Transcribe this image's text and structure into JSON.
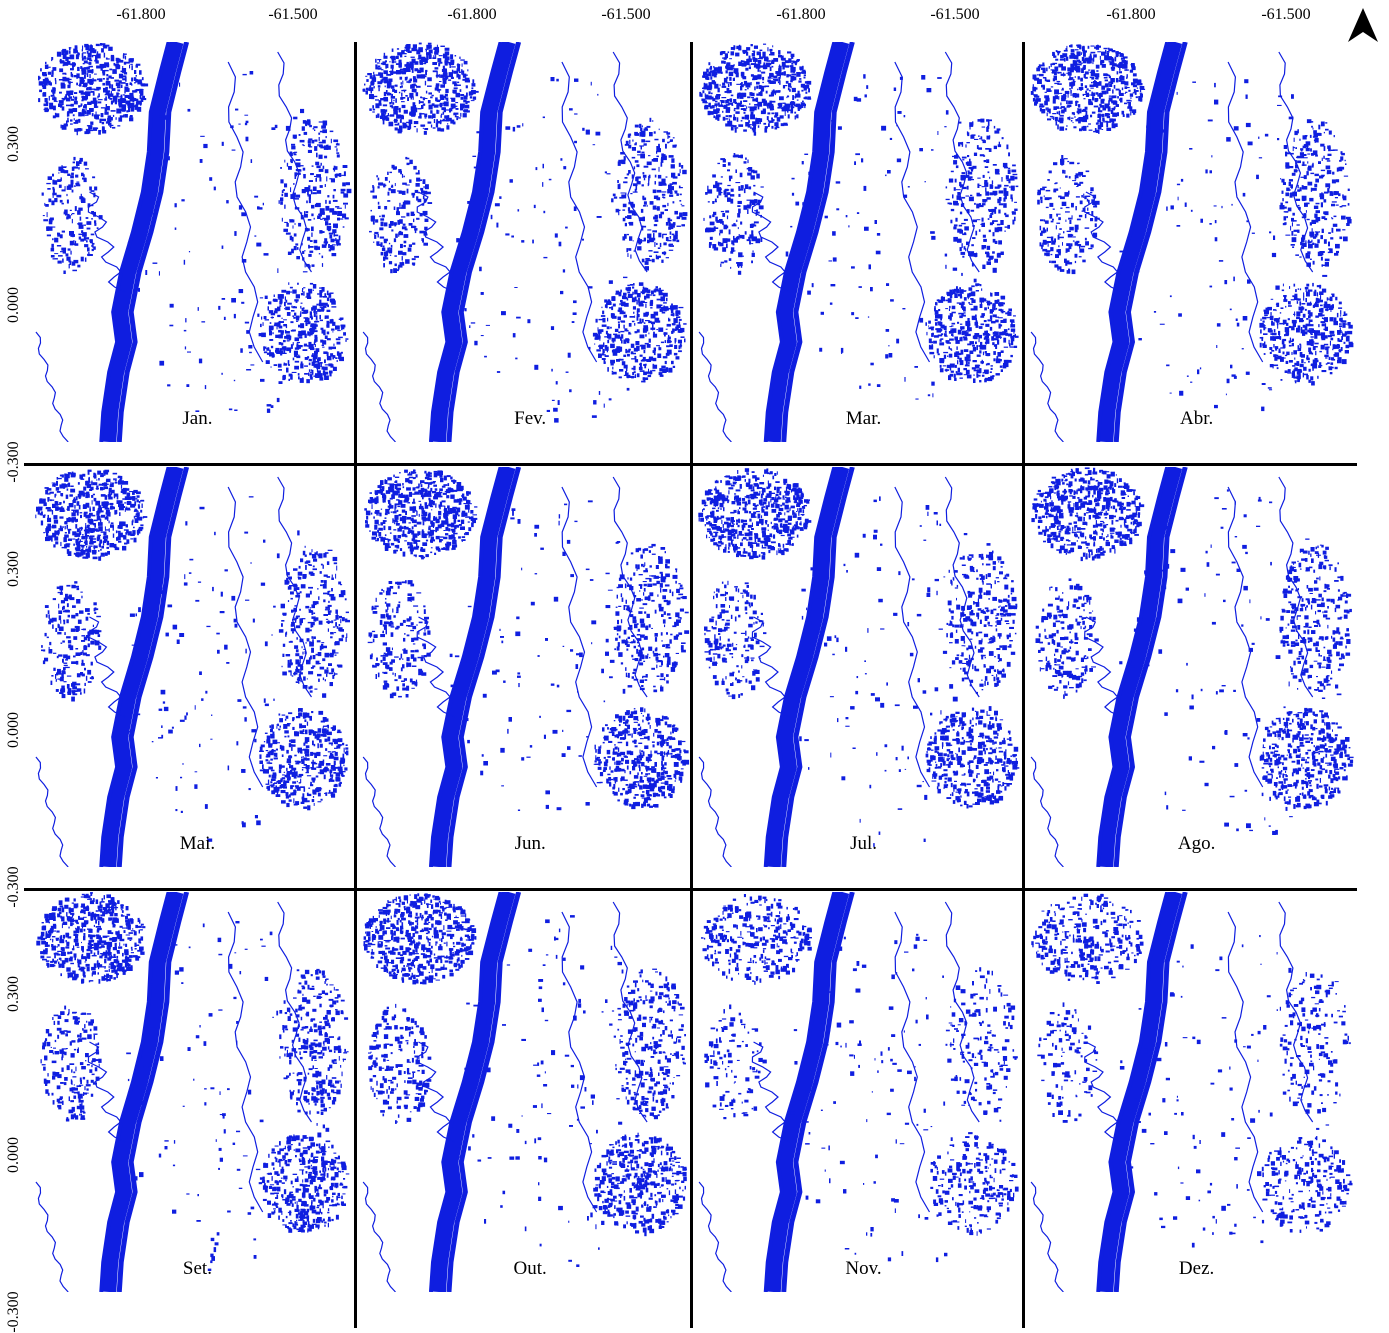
{
  "x_tick_labels": [
    "-61.800",
    "-61.500"
  ],
  "y_tick_labels": [
    "0.300",
    "0.000",
    "-0.300"
  ],
  "north_arrow": "north-arrow-icon",
  "colors": {
    "water": "#0f1ee0",
    "background": "#ffffff",
    "border": "#000000"
  },
  "months": [
    "Jan.",
    "Fev.",
    "Mar.",
    "Abr.",
    "Mai.",
    "Jun.",
    "Jul.",
    "Ago.",
    "Set.",
    "Out.",
    "Nov.",
    "Dez."
  ]
}
